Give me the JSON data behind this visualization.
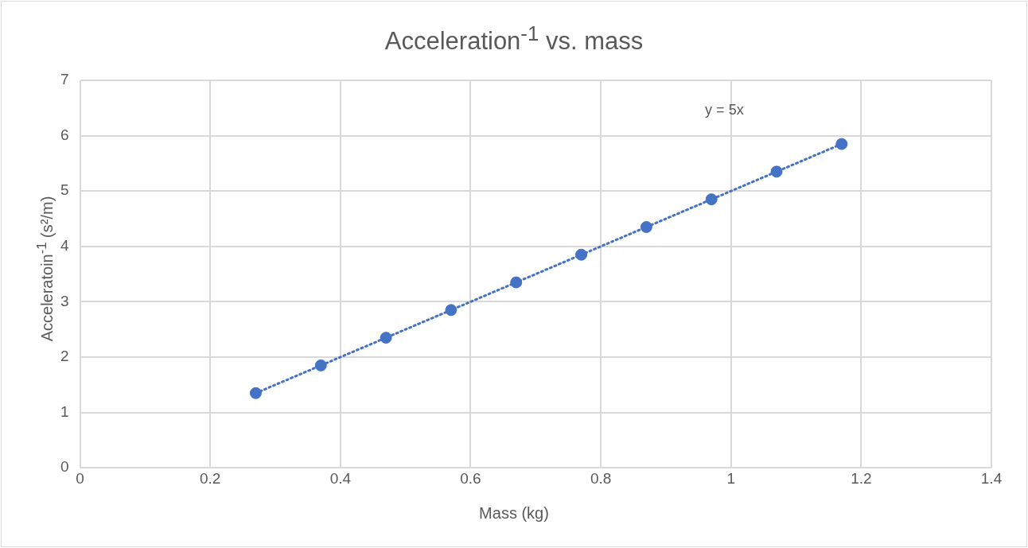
{
  "chart_data": {
    "type": "scatter",
    "title": "Acceleration$^{-1}$ vs. mass",
    "xlabel": "Mass (kg)",
    "ylabel": "Acceleratoin$^{-1}$ (s²/m)",
    "series": [
      {
        "color": "#4472c4",
        "marker": "circle",
        "x": [
          0.27,
          0.37,
          0.47,
          0.57,
          0.67,
          0.77,
          0.87,
          0.97,
          1.07,
          1.17
        ],
        "values": [
          1.35,
          1.85,
          2.35,
          2.85,
          3.35,
          3.85,
          4.35,
          4.85,
          5.35,
          5.85
        ]
      },
      {
        "type": "line",
        "color": "#4472c4",
        "marker": "none",
        "line_style": "dotted",
        "x": [
          0.27,
          1.17
        ],
        "values": [
          1.35,
          5.85
        ]
      }
    ],
    "xlim": [
      0,
      1.4
    ],
    "xticks": [
      0,
      0.2,
      0.4,
      0.6,
      0.8,
      1,
      1.2,
      1.4
    ],
    "ylim": [
      0,
      7
    ],
    "yticks": [
      0,
      1,
      2,
      3,
      4,
      5,
      6,
      7
    ],
    "grid": true,
    "legend": false,
    "annotations": [
      "y = 5x"
    ]
  }
}
